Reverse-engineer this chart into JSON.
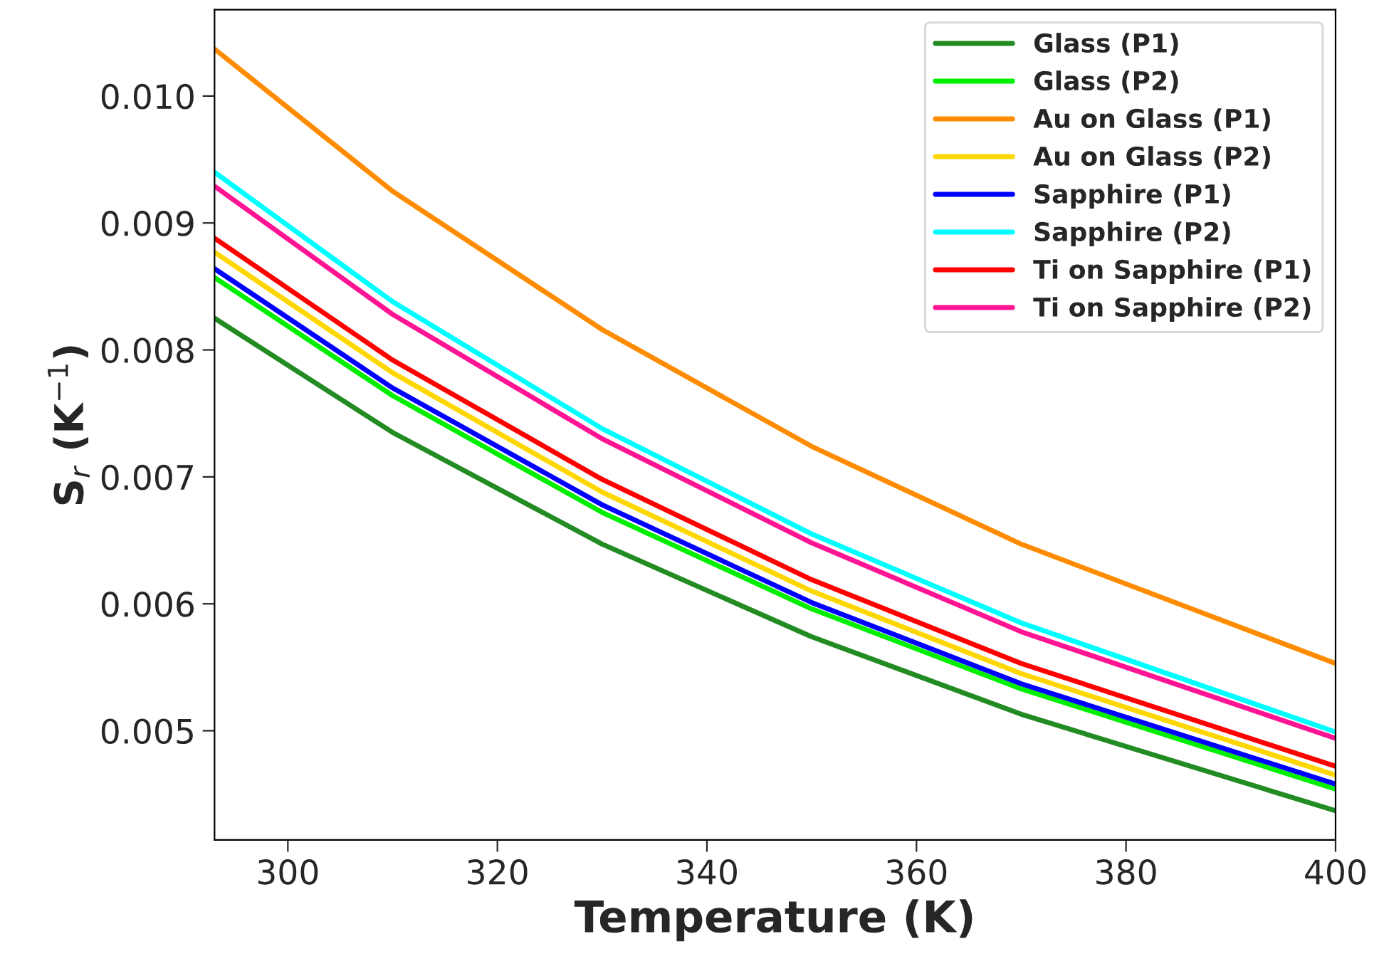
{
  "chart_data": {
    "type": "line",
    "xlabel": "Temperature (K)",
    "ylabel": "S$_{r}$ (K$^{−1}$)",
    "x": [
      293,
      310,
      330,
      350,
      370,
      400
    ],
    "xlim": [
      293,
      400
    ],
    "xticks": [
      300,
      320,
      340,
      360,
      380,
      400
    ],
    "ylim": [
      0.00414,
      0.01068
    ],
    "yticks": [
      {
        "value": 0.005,
        "label": "0.005"
      },
      {
        "value": 0.006,
        "label": "0.006"
      },
      {
        "value": 0.007,
        "label": "0.007"
      },
      {
        "value": 0.008,
        "label": "0.008"
      },
      {
        "value": 0.009,
        "label": "0.009"
      },
      {
        "value": 0.01,
        "label": "0.010"
      }
    ],
    "grid": false,
    "legend": "top right",
    "line_style": "solid",
    "marker": "none",
    "series": [
      {
        "name": "Glass (P1)",
        "color": "#228b22",
        "values": [
          0.00825,
          0.00735,
          0.00647,
          0.00574,
          0.00513,
          0.00437
        ]
      },
      {
        "name": "Glass (P2)",
        "color": "#00ee00",
        "values": [
          0.00857,
          0.00764,
          0.00672,
          0.00596,
          0.00533,
          0.00454
        ]
      },
      {
        "name": "Au on Glass (P1)",
        "color": "#ff8c00",
        "values": [
          0.01037,
          0.00925,
          0.00816,
          0.00724,
          0.00647,
          0.00553
        ]
      },
      {
        "name": "Au on Glass (P2)",
        "color": "#ffd700",
        "values": [
          0.00877,
          0.00782,
          0.00688,
          0.0061,
          0.00545,
          0.00465
        ]
      },
      {
        "name": "Sapphire (P1)",
        "color": "#0000ff",
        "values": [
          0.00864,
          0.0077,
          0.00678,
          0.00601,
          0.00537,
          0.00458
        ]
      },
      {
        "name": "Sapphire (P2)",
        "color": "#00ffff",
        "values": [
          0.0094,
          0.00838,
          0.00738,
          0.00655,
          0.00585,
          0.00499
        ]
      },
      {
        "name": "Ti on Sapphire (P1)",
        "color": "#ff0000",
        "values": [
          0.00888,
          0.00792,
          0.00698,
          0.00619,
          0.00553,
          0.00472
        ]
      },
      {
        "name": "Ti on Sapphire (P2)",
        "color": "#ff1493",
        "values": [
          0.00929,
          0.00828,
          0.0073,
          0.00648,
          0.00578,
          0.00494
        ]
      }
    ]
  }
}
